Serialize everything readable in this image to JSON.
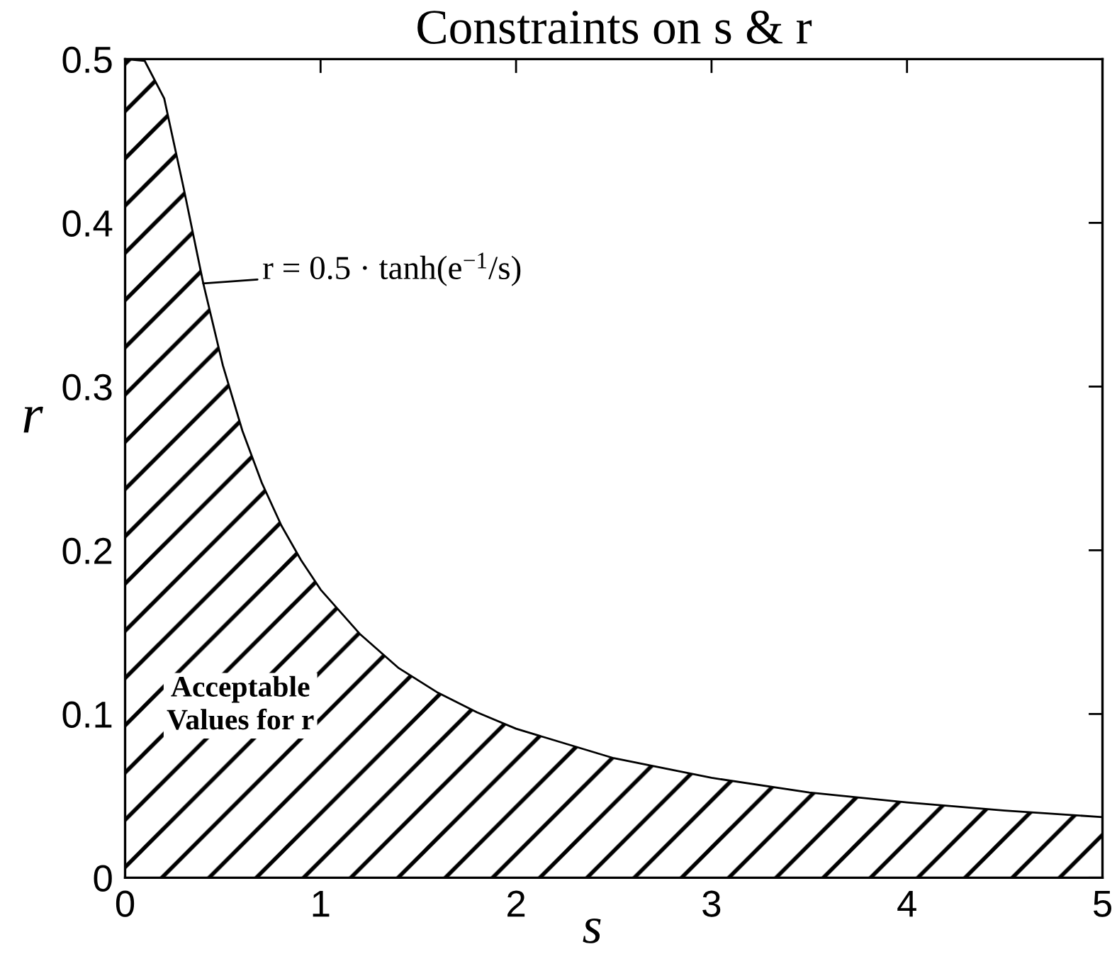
{
  "chart_data": {
    "type": "area",
    "title": "Constraints on s & r",
    "xlabel": "s",
    "ylabel": "r",
    "x": [
      0,
      0.1,
      0.2,
      0.3,
      0.4,
      0.5,
      0.6,
      0.7,
      0.8,
      0.9,
      1.0,
      1.2,
      1.4,
      1.6,
      1.8,
      2.0,
      2.5,
      3.0,
      3.5,
      4.0,
      4.5,
      5.0
    ],
    "series": [
      {
        "color": "#000000",
        "values": [
          0.5,
          0.499,
          0.476,
          0.421,
          0.363,
          0.313,
          0.273,
          0.241,
          0.215,
          0.194,
          0.176,
          0.149,
          0.128,
          0.113,
          0.101,
          0.091,
          0.073,
          0.061,
          0.052,
          0.046,
          0.041,
          0.037
        ]
      }
    ],
    "xlim": [
      0,
      5
    ],
    "ylim": [
      0,
      0.5
    ],
    "xticks": [
      0,
      1,
      2,
      3,
      4,
      5
    ],
    "yticks": [
      0,
      0.1,
      0.2,
      0.3,
      0.4,
      0.5
    ],
    "grid": false,
    "legend": false,
    "annotations": [
      {
        "text": "r = 0.5 · tanh(e$^{−1}$/s)",
        "x": 0.4,
        "y": 0.363
      },
      "Acceptable\nValues for r"
    ]
  }
}
